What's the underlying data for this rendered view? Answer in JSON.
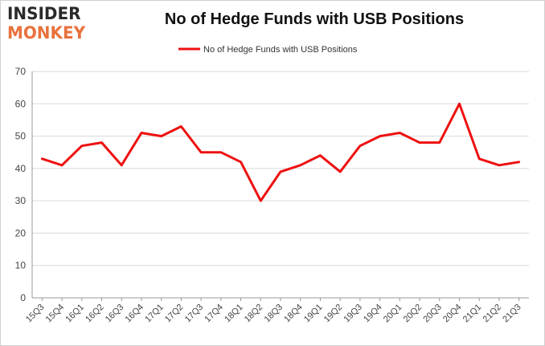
{
  "logo": {
    "line1": "INSIDER",
    "line2": "MONKEY"
  },
  "chart_data": {
    "type": "line",
    "title": "No of Hedge Funds with USB Positions",
    "xlabel": "",
    "ylabel": "",
    "categories": [
      "15Q3",
      "15Q4",
      "16Q1",
      "16Q2",
      "16Q3",
      "16Q4",
      "17Q1",
      "17Q2",
      "17Q3",
      "17Q4",
      "18Q1",
      "18Q2",
      "18Q3",
      "18Q4",
      "19Q1",
      "19Q2",
      "19Q3",
      "19Q4",
      "20Q1",
      "20Q2",
      "20Q3",
      "20Q4",
      "21Q1",
      "21Q2",
      "21Q3"
    ],
    "series": [
      {
        "name": "No of Hedge Funds with USB Positions",
        "values": [
          43,
          41,
          47,
          48,
          41,
          51,
          50,
          53,
          45,
          45,
          42,
          30,
          39,
          41,
          44,
          39,
          47,
          50,
          51,
          48,
          48,
          60,
          43,
          41,
          42
        ]
      }
    ],
    "ylim": [
      0,
      70
    ],
    "yticks": [
      0,
      10,
      20,
      30,
      40,
      50,
      60,
      70
    ],
    "grid": true,
    "legend_position": "top-center",
    "line_color": "#ee1111",
    "grid_color": "#d9d9d9"
  }
}
